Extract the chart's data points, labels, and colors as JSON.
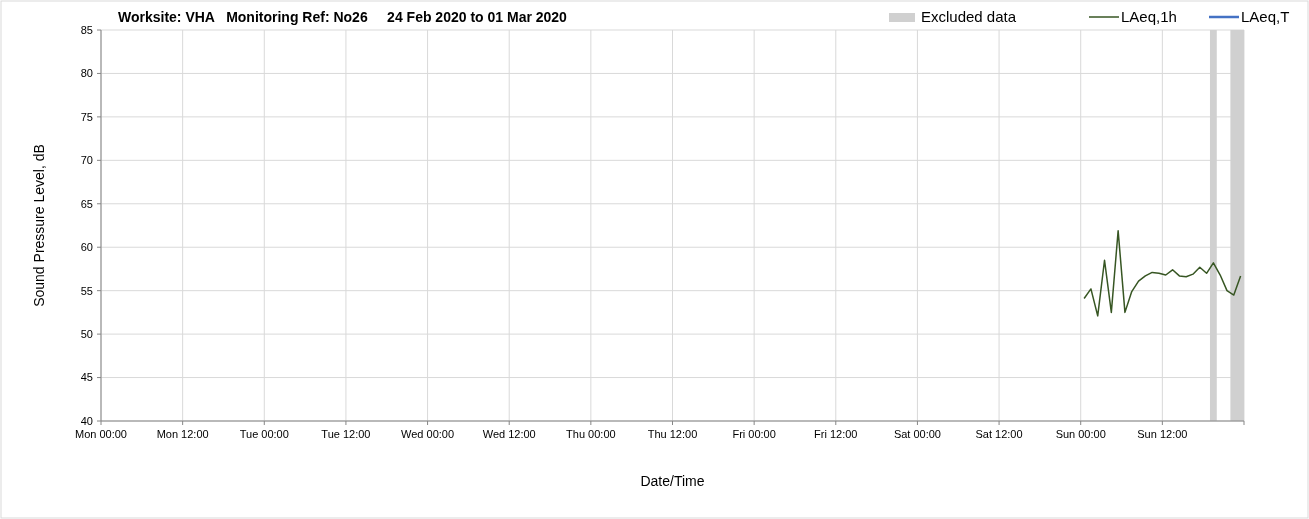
{
  "chart_data": {
    "type": "line",
    "title": "Worksite: VHA   Monitoring Ref: No26     24 Feb 2020 to 01 Mar 2020",
    "xlabel": "Date/Time",
    "ylabel": "Sound Pressure Level, dB",
    "x": [
      "2020-03-01T00:30",
      "2020-03-01T01:30",
      "2020-03-01T02:30",
      "2020-03-01T03:30",
      "2020-03-01T04:30",
      "2020-03-01T05:30",
      "2020-03-01T06:30",
      "2020-03-01T07:30",
      "2020-03-01T08:30",
      "2020-03-01T09:30",
      "2020-03-01T10:30",
      "2020-03-01T11:30",
      "2020-03-01T12:30",
      "2020-03-01T13:30",
      "2020-03-01T14:30",
      "2020-03-01T15:30",
      "2020-03-01T16:30",
      "2020-03-01T17:30",
      "2020-03-01T18:30",
      "2020-03-01T19:30",
      "2020-03-01T20:30",
      "2020-03-01T21:30",
      "2020-03-01T22:30",
      "2020-03-01T23:30"
    ],
    "series": [
      {
        "name": "LAeq,1h",
        "color": "#375623",
        "values": [
          54.1,
          55.2,
          52.1,
          58.5,
          52.5,
          61.9,
          52.5,
          54.9,
          56.1,
          56.7,
          57.1,
          57.0,
          56.8,
          57.4,
          56.7,
          56.6,
          56.9,
          57.7,
          57.0,
          58.2,
          56.8,
          55.0,
          54.5,
          56.7
        ]
      },
      {
        "name": "LAeq,T",
        "color": "#4472c4",
        "values": [
          null,
          null,
          null,
          null,
          null,
          null,
          null,
          null,
          null,
          null,
          null,
          null,
          null,
          null,
          null,
          null,
          null,
          null,
          null,
          null,
          null,
          null,
          null,
          null
        ]
      }
    ],
    "bands": [
      {
        "axis": "x",
        "from": "2020-03-01T19:00",
        "to": "2020-03-01T20:00",
        "label": "Excluded data",
        "color": "#d0d0d0"
      },
      {
        "axis": "x",
        "from": "2020-03-01T22:00",
        "to": "2020-03-02T00:00",
        "color": "#d0d0d0"
      }
    ],
    "xlim": [
      "2020-02-24T00:00",
      "2020-03-02T00:00"
    ],
    "xticks": [
      {
        "value": "2020-02-24T00:00",
        "label": "Mon 00:00"
      },
      {
        "value": "2020-02-24T12:00",
        "label": "Mon 12:00"
      },
      {
        "value": "2020-02-25T00:00",
        "label": "Tue 00:00"
      },
      {
        "value": "2020-02-25T12:00",
        "label": "Tue 12:00"
      },
      {
        "value": "2020-02-26T00:00",
        "label": "Wed 00:00"
      },
      {
        "value": "2020-02-26T12:00",
        "label": "Wed 12:00"
      },
      {
        "value": "2020-02-27T00:00",
        "label": "Thu 00:00"
      },
      {
        "value": "2020-02-27T12:00",
        "label": "Thu 12:00"
      },
      {
        "value": "2020-02-28T00:00",
        "label": "Fri 00:00"
      },
      {
        "value": "2020-02-28T12:00",
        "label": "Fri 12:00"
      },
      {
        "value": "2020-02-29T00:00",
        "label": "Sat 00:00"
      },
      {
        "value": "2020-02-29T12:00",
        "label": "Sat 12:00"
      },
      {
        "value": "2020-03-01T00:00",
        "label": "Sun 00:00"
      },
      {
        "value": "2020-03-01T12:00",
        "label": "Sun 12:00"
      },
      {
        "value": "2020-03-02T00:00",
        "label": null
      }
    ],
    "ylim": [
      40,
      85
    ],
    "yticks": [
      40,
      45,
      50,
      55,
      60,
      65,
      70,
      75,
      80,
      85
    ],
    "grid": true,
    "legend": "top right",
    "marker": "none",
    "line_style": "solid"
  }
}
